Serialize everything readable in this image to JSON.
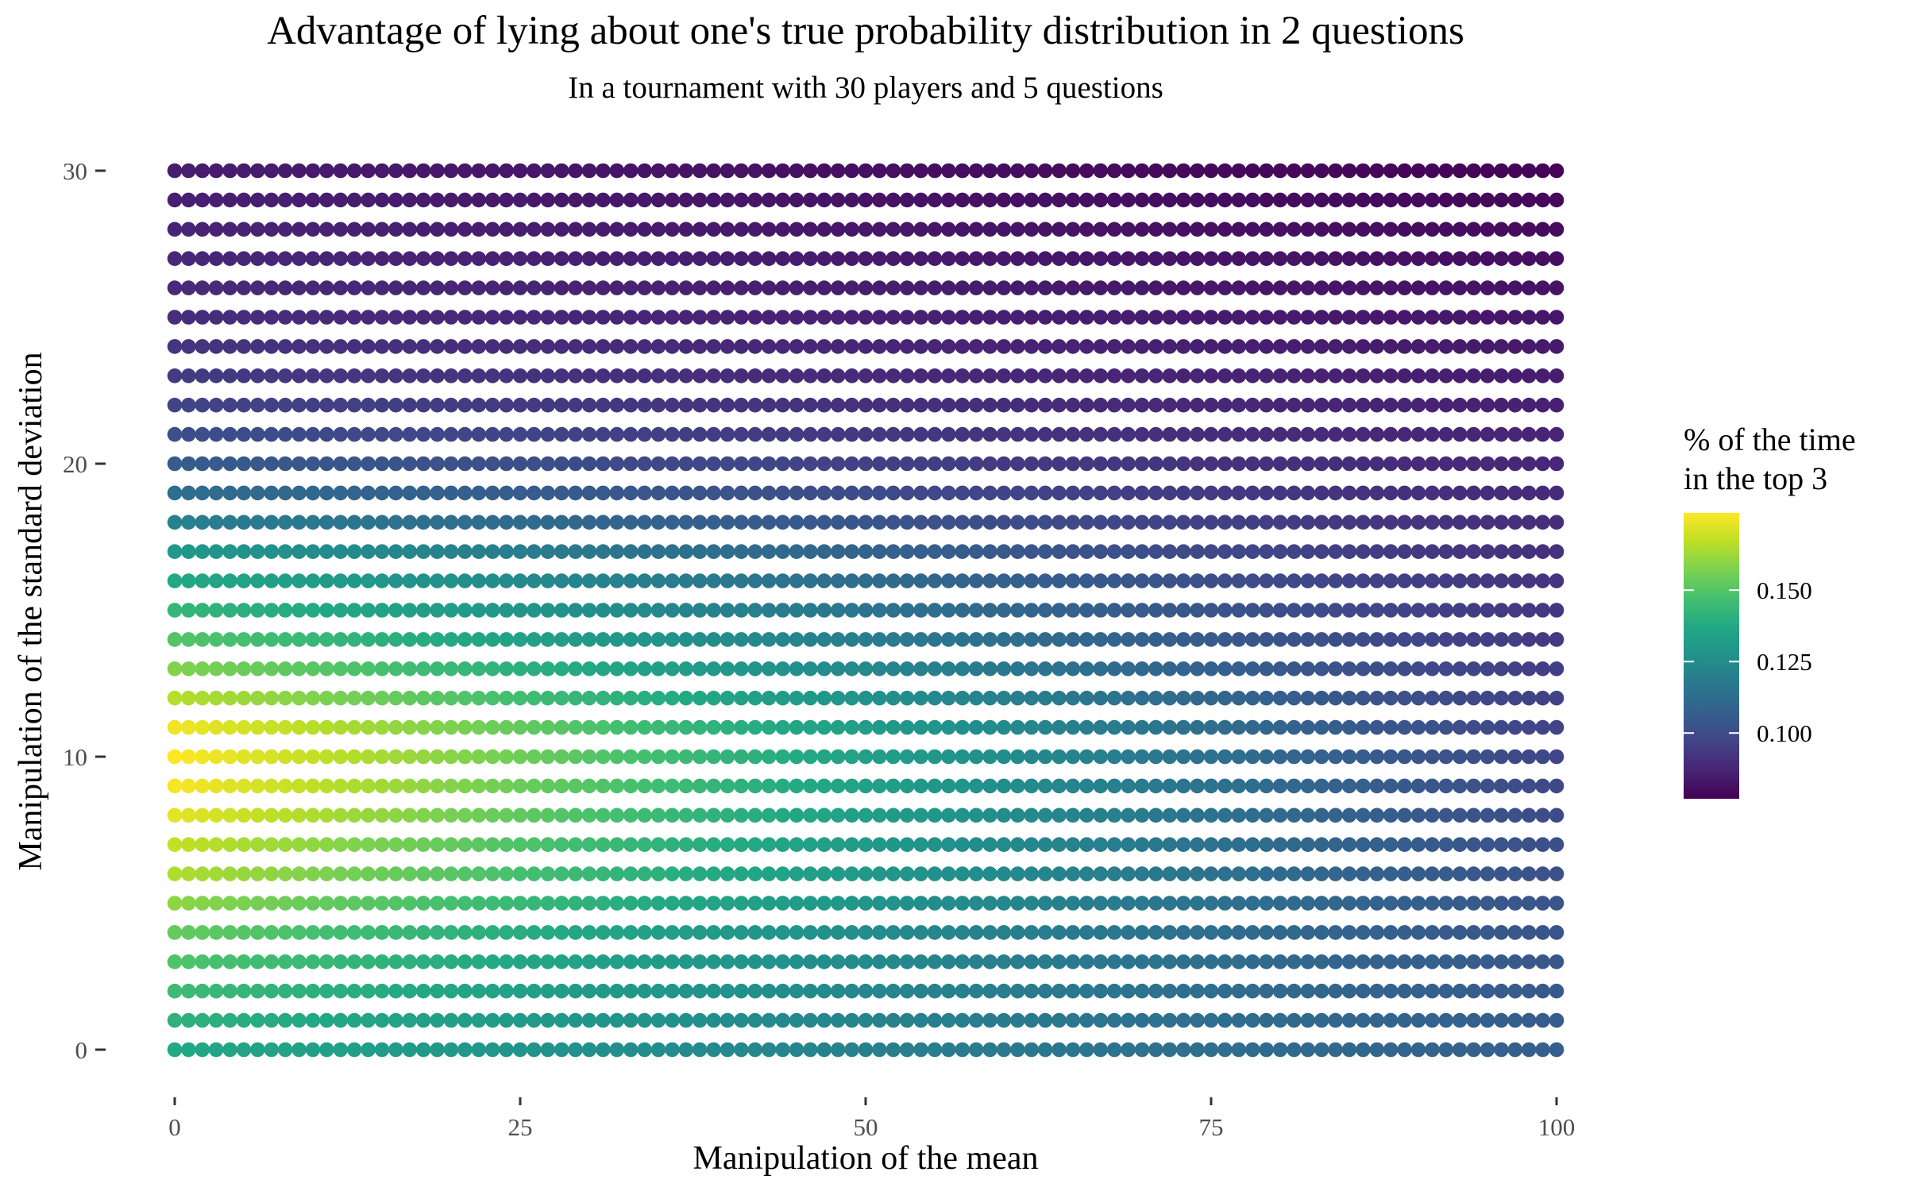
{
  "chart_data": {
    "type": "scatter",
    "title": "Advantage of lying about one's true probability distribution in 2 questions",
    "subtitle": "In a tournament with 30 players and 5 questions",
    "xlabel": "Manipulation of the mean",
    "ylabel": "Manipulation of the standard deviation",
    "xlim": [
      0,
      100
    ],
    "ylim": [
      0,
      30
    ],
    "x_ticks": [
      {
        "value": 0,
        "label": "0"
      },
      {
        "value": 25,
        "label": "25"
      },
      {
        "value": 50,
        "label": "50"
      },
      {
        "value": 75,
        "label": "75"
      },
      {
        "value": 100,
        "label": "100"
      }
    ],
    "y_ticks": [
      {
        "value": 0,
        "label": "0"
      },
      {
        "value": 10,
        "label": "10"
      },
      {
        "value": 20,
        "label": "20"
      },
      {
        "value": 30,
        "label": "30"
      }
    ],
    "grid": false,
    "x_step": 1,
    "y_step": 1,
    "color_scale": {
      "name": "viridis",
      "title_lines": [
        "% of the time",
        "in the top 3"
      ],
      "range": [
        0.077,
        0.177
      ],
      "ticks": [
        {
          "value": 0.1,
          "label": "0.100"
        },
        {
          "value": 0.125,
          "label": "0.125"
        },
        {
          "value": 0.15,
          "label": "0.150"
        }
      ],
      "legend_position": "right"
    },
    "value_surface": {
      "description_omitted": true,
      "row_profile": [
        {
          "y": 0,
          "left": 0.137,
          "right": 0.107
        },
        {
          "y": 1,
          "left": 0.141,
          "right": 0.106
        },
        {
          "y": 2,
          "left": 0.145,
          "right": 0.105
        },
        {
          "y": 3,
          "left": 0.149,
          "right": 0.104
        },
        {
          "y": 4,
          "left": 0.153,
          "right": 0.103
        },
        {
          "y": 5,
          "left": 0.16,
          "right": 0.103
        },
        {
          "y": 6,
          "left": 0.165,
          "right": 0.102
        },
        {
          "y": 7,
          "left": 0.168,
          "right": 0.101
        },
        {
          "y": 8,
          "left": 0.173,
          "right": 0.1
        },
        {
          "y": 9,
          "left": 0.176,
          "right": 0.099
        },
        {
          "y": 10,
          "left": 0.177,
          "right": 0.098
        },
        {
          "y": 11,
          "left": 0.175,
          "right": 0.097
        },
        {
          "y": 12,
          "left": 0.166,
          "right": 0.096
        },
        {
          "y": 13,
          "left": 0.158,
          "right": 0.095
        },
        {
          "y": 14,
          "left": 0.15,
          "right": 0.094
        },
        {
          "y": 15,
          "left": 0.143,
          "right": 0.093
        },
        {
          "y": 16,
          "left": 0.137,
          "right": 0.092
        },
        {
          "y": 17,
          "left": 0.13,
          "right": 0.091
        },
        {
          "y": 18,
          "left": 0.12,
          "right": 0.09
        },
        {
          "y": 19,
          "left": 0.113,
          "right": 0.089
        },
        {
          "y": 20,
          "left": 0.106,
          "right": 0.088
        },
        {
          "y": 21,
          "left": 0.101,
          "right": 0.087
        },
        {
          "y": 22,
          "left": 0.097,
          "right": 0.086
        },
        {
          "y": 23,
          "left": 0.094,
          "right": 0.085
        },
        {
          "y": 24,
          "left": 0.092,
          "right": 0.084
        },
        {
          "y": 25,
          "left": 0.09,
          "right": 0.083
        },
        {
          "y": 26,
          "left": 0.089,
          "right": 0.082
        },
        {
          "y": 27,
          "left": 0.088,
          "right": 0.081
        },
        {
          "y": 28,
          "left": 0.087,
          "right": 0.08
        },
        {
          "y": 29,
          "left": 0.086,
          "right": 0.079
        },
        {
          "y": 30,
          "left": 0.085,
          "right": 0.078
        }
      ]
    }
  }
}
